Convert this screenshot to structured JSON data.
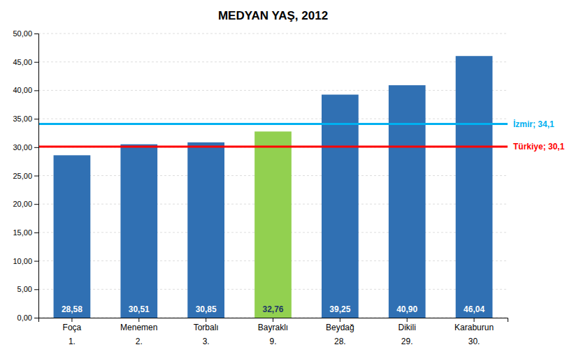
{
  "chart_data": {
    "type": "bar",
    "title": "MEDYAN YAŞ, 2012",
    "categories": [
      "Foça",
      "Menemen",
      "Torbalı",
      "Bayraklı",
      "Beydağ",
      "Dikili",
      "Karaburun"
    ],
    "ranks": [
      "1.",
      "2.",
      "3.",
      "9.",
      "28.",
      "29.",
      "30."
    ],
    "values": [
      28.58,
      30.51,
      30.85,
      32.76,
      39.25,
      40.9,
      46.04
    ],
    "value_labels": [
      "28,58",
      "30,51",
      "30,85",
      "32,76",
      "39,25",
      "40,90",
      "46,04"
    ],
    "data_labels": true,
    "colors": [
      "#3070B3",
      "#3070B3",
      "#3070B3",
      "#92D050",
      "#3070B3",
      "#3070B3",
      "#3070B3"
    ],
    "reference_lines": [
      {
        "value": 34.1,
        "label": "İzmir; 34,1",
        "color": "#00B0F0"
      },
      {
        "value": 30.1,
        "label": "Türkiye; 30,1",
        "color": "#FF0000"
      }
    ],
    "ylim": [
      0,
      50
    ],
    "yticks": [
      {
        "value": 0,
        "label": "0,00"
      },
      {
        "value": 5,
        "label": "5,00"
      },
      {
        "value": 10,
        "label": "10,00"
      },
      {
        "value": 15,
        "label": "15,00"
      },
      {
        "value": 20,
        "label": "20,00"
      },
      {
        "value": 25,
        "label": "25,00"
      },
      {
        "value": 30,
        "label": "30,00"
      },
      {
        "value": 35,
        "label": "35,00"
      },
      {
        "value": 40,
        "label": "40,00"
      },
      {
        "value": 45,
        "label": "45,00"
      },
      {
        "value": 50,
        "label": "50,00"
      }
    ],
    "grid": true
  }
}
